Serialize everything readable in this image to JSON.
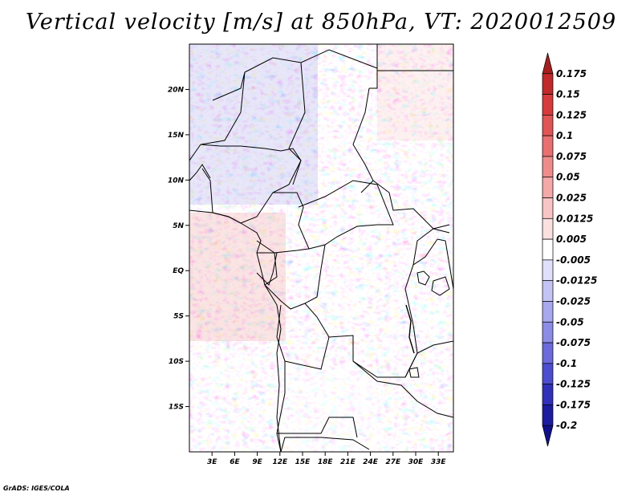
{
  "title": "Vertical velocity [m/s] at 850hPa, VT: 2020012509",
  "credit": "GrADS: IGES/COLA",
  "map": {
    "lat_range": [
      -20,
      25
    ],
    "lon_range": [
      0,
      35
    ],
    "lat_labels": [
      "20N",
      "15N",
      "10N",
      "5N",
      "EQ",
      "5S",
      "10S",
      "15S"
    ],
    "lat_values": [
      20,
      15,
      10,
      5,
      0,
      -5,
      -10,
      -15
    ],
    "lon_labels": [
      "3E",
      "6E",
      "9E",
      "12E",
      "15E",
      "18E",
      "21E",
      "24E",
      "27E",
      "30E",
      "33E"
    ],
    "lon_values": [
      3,
      6,
      9,
      12,
      15,
      18,
      21,
      24,
      27,
      30,
      33
    ]
  },
  "colorbar": {
    "labels": [
      "0.175",
      "0.15",
      "0.125",
      "0.1",
      "0.075",
      "0.05",
      "0.025",
      "0.0125",
      "0.005",
      "-0.005",
      "-0.0125",
      "-0.025",
      "-0.05",
      "-0.075",
      "-0.1",
      "-0.125",
      "-0.175",
      "-0.2"
    ],
    "colors": [
      "#a51f1f",
      "#c02a2a",
      "#d63b3b",
      "#e05555",
      "#e87070",
      "#ee8c8c",
      "#f4a8a8",
      "#f8c4c4",
      "#fbe0e0",
      "#ffffff",
      "#e0e0fb",
      "#c4c4f4",
      "#a8a8ee",
      "#8c8ce6",
      "#6b6bdb",
      "#4d4dcf",
      "#3030b8",
      "#1c1c9e",
      "#10108a"
    ]
  }
}
